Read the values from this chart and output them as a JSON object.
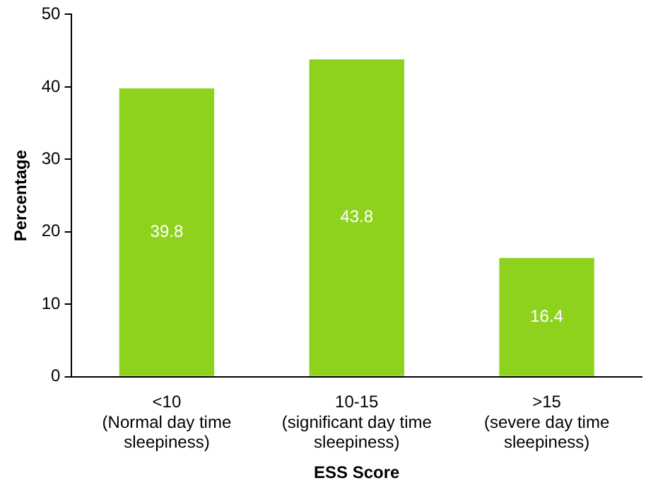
{
  "chart_data": {
    "type": "bar",
    "xlabel": "ESS Score",
    "ylabel": "Percentage",
    "categories": [
      "<10\n(Normal day time\nsleepiness)",
      "10-15\n(significant day time\nsleepiness)",
      ">15\n(severe day time\nsleepiness)"
    ],
    "values": [
      39.8,
      43.8,
      16.4
    ],
    "color": "#8fd21e",
    "ylim": [
      0,
      50
    ],
    "yticks": [
      0,
      10,
      20,
      30,
      40,
      50
    ],
    "grid": false,
    "data_labels": true
  }
}
